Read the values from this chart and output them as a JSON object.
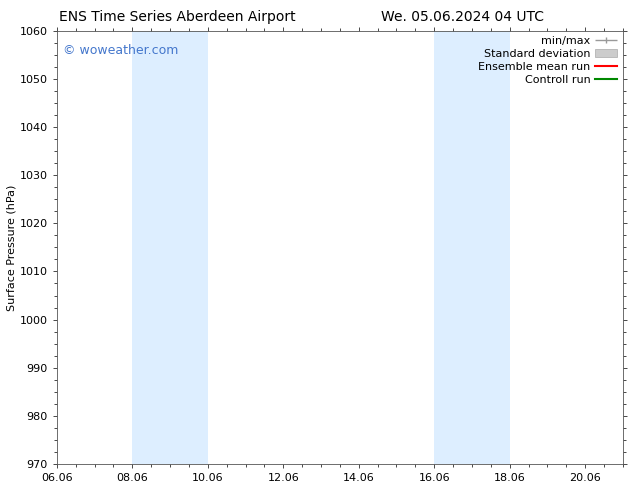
{
  "title_left": "ENS Time Series Aberdeen Airport",
  "title_right": "We. 05.06.2024 04 UTC",
  "ylabel": "Surface Pressure (hPa)",
  "ylim": [
    970,
    1060
  ],
  "yticks": [
    970,
    980,
    990,
    1000,
    1010,
    1020,
    1030,
    1040,
    1050,
    1060
  ],
  "xtick_labels": [
    "06.06",
    "08.06",
    "10.06",
    "12.06",
    "14.06",
    "16.06",
    "18.06",
    "20.06"
  ],
  "xtick_positions": [
    0,
    2,
    4,
    6,
    8,
    10,
    12,
    14
  ],
  "xlim": [
    0,
    15
  ],
  "shaded_regions": [
    {
      "x_start": 2,
      "x_end": 4
    },
    {
      "x_start": 10,
      "x_end": 12
    }
  ],
  "shaded_color": "#ddeeff",
  "background_color": "#ffffff",
  "watermark_text": "© woweather.com",
  "watermark_color": "#4477cc",
  "legend_labels": [
    "min/max",
    "Standard deviation",
    "Ensemble mean run",
    "Controll run"
  ],
  "legend_colors": [
    "#999999",
    "#cccccc",
    "#ff0000",
    "#008800"
  ],
  "title_fontsize": 10,
  "tick_fontsize": 8,
  "legend_fontsize": 8,
  "watermark_fontsize": 9,
  "ylabel_fontsize": 8
}
